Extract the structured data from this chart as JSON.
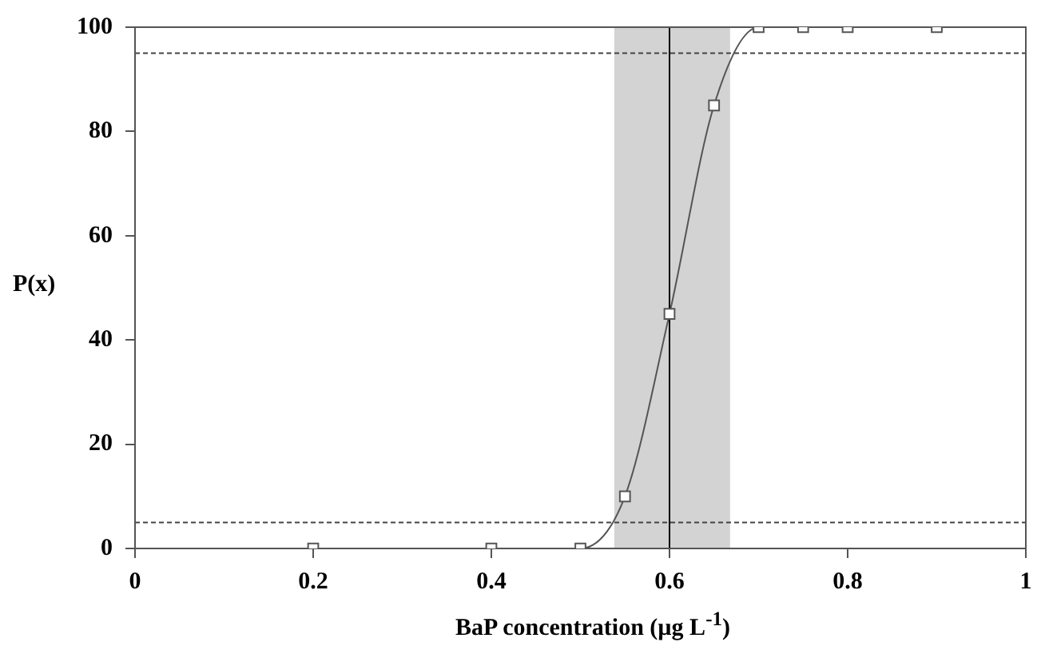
{
  "chart_data": {
    "type": "line",
    "xlabel": "BaP concentration (µg L$^{-1}$)",
    "ylabel": "P(x)",
    "x": [
      0.2,
      0.4,
      0.5,
      0.55,
      0.6,
      0.65,
      0.7,
      0.75,
      0.8,
      0.9
    ],
    "series": [
      {
        "color": "#555555",
        "values": [
          0,
          0,
          0,
          10,
          45,
          85,
          100,
          100,
          100,
          100
        ]
      }
    ],
    "xlim": [
      0,
      1
    ],
    "xticks": [
      0,
      0.2,
      0.4,
      0.6,
      0.8,
      1
    ],
    "ylim": [
      0,
      100
    ],
    "yticks": [
      0,
      20,
      40,
      60,
      80,
      100
    ],
    "ref_lines": [
      {
        "axis": "y",
        "value": 5,
        "color": "#444444",
        "line_style": "dashed"
      },
      {
        "axis": "y",
        "value": 95,
        "color": "#444444",
        "line_style": "dashed"
      },
      {
        "axis": "x",
        "value": 0.6,
        "color": "#000000",
        "line_style": "solid"
      }
    ],
    "bands": [
      {
        "axis": "x",
        "from": 0.538,
        "to": 0.668,
        "color": "#d3d3d3"
      }
    ],
    "marker": "square",
    "line_style": "solid",
    "grid": false,
    "legend": false
  }
}
